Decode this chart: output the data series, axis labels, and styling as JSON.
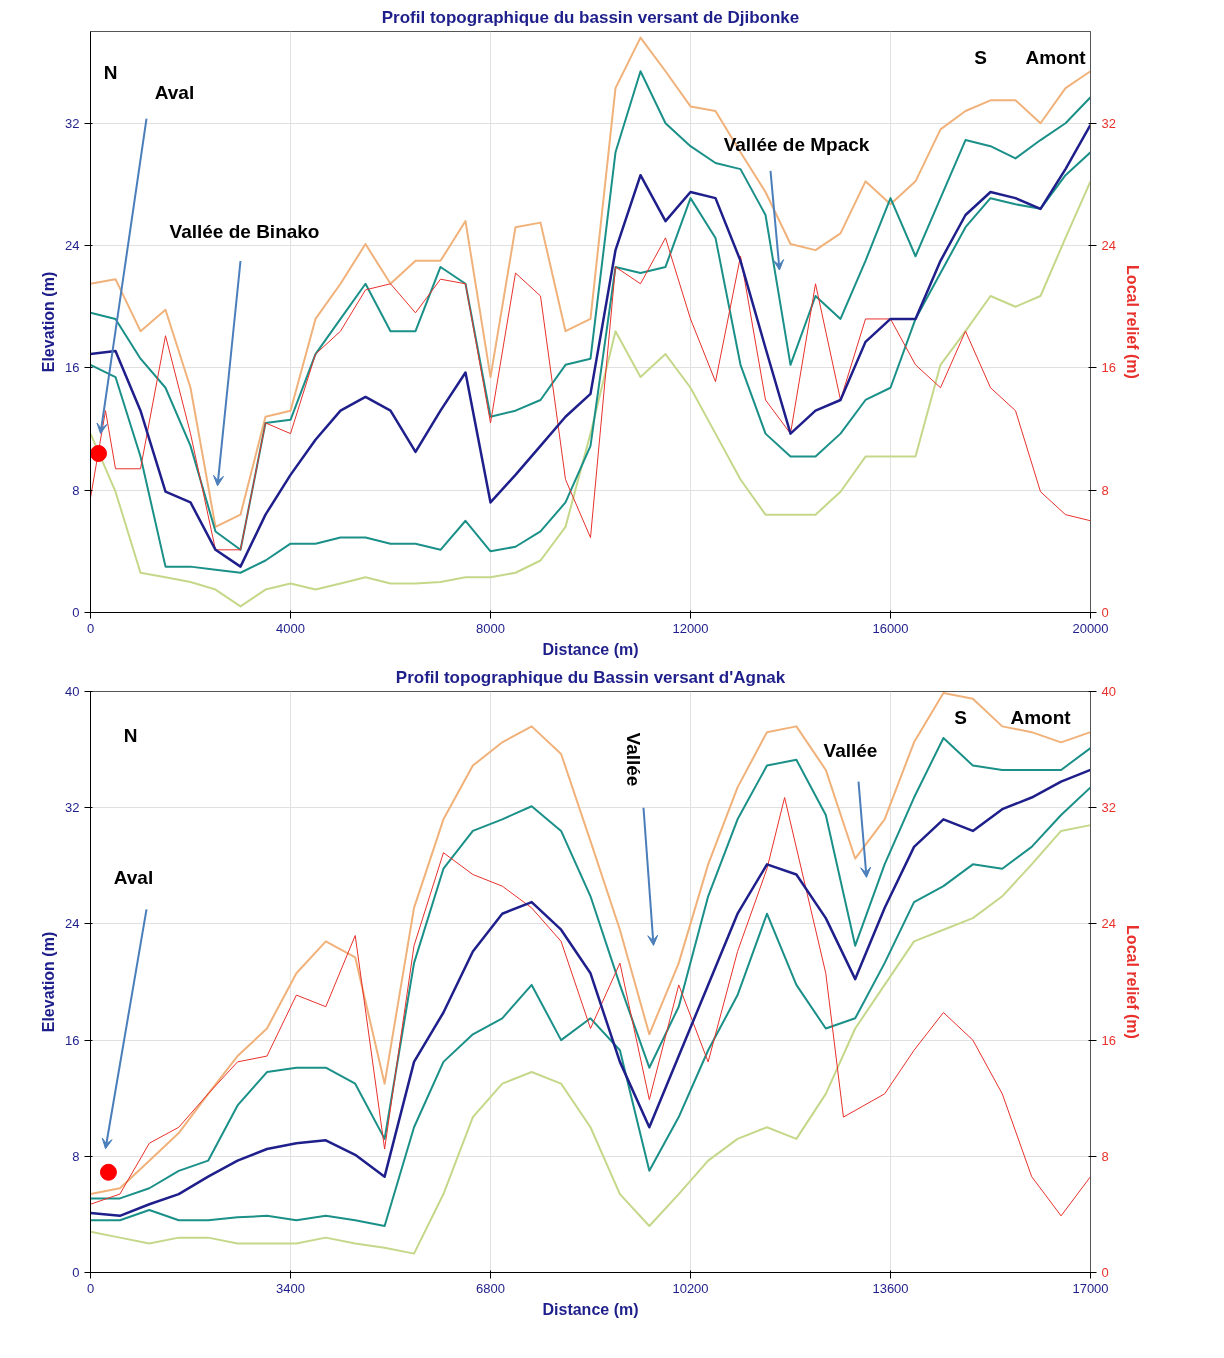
{
  "chart_data": [
    {
      "type": "line",
      "title": "Profil topographique du bassin versant de Djibonke",
      "xlabel": "Distance (m)",
      "ylabel": "Elevation (m)",
      "y2label": "Local relief (m)",
      "x": [
        0,
        500,
        1000,
        1500,
        2000,
        2500,
        3000,
        3500,
        4000,
        4500,
        5000,
        5500,
        6000,
        6500,
        7000,
        7500,
        8000,
        8500,
        9000,
        9500,
        10000,
        10500,
        11000,
        11500,
        12000,
        12500,
        13000,
        13500,
        14000,
        14500,
        15000,
        15500,
        16000,
        16500,
        17000,
        17500,
        18000,
        18500,
        19000,
        19500,
        20000
      ],
      "xlim": [
        0,
        20000
      ],
      "xticks": [
        0,
        4000,
        8000,
        12000,
        16000,
        20000
      ],
      "ylim": [
        0,
        38
      ],
      "yticks": [
        0,
        8,
        16,
        24,
        32
      ],
      "y2lim": [
        0,
        38
      ],
      "y2ticks": [
        0,
        8,
        16,
        24,
        32
      ],
      "grid": true,
      "series": [
        {
          "color": "#c5d88a",
          "values": [
            11.7,
            7.9,
            2.6,
            2.3,
            2,
            1.5,
            0.4,
            1.5,
            1.9,
            1.5,
            1.9,
            2.3,
            1.9,
            1.9,
            2,
            2.3,
            2.3,
            2.6,
            3.4,
            5.6,
            11.7,
            18.4,
            15.4,
            16.9,
            14.7,
            11.7,
            8.7,
            6.4,
            6.4,
            6.4,
            7.9,
            10.2,
            10.2,
            10.2,
            16.2,
            18.4,
            20.7,
            20,
            20.7,
            24.5,
            28.2
          ]
        },
        {
          "color": "#f0b27a",
          "values": [
            21.5,
            21.8,
            18.4,
            19.8,
            14.7,
            5.6,
            6.4,
            12.8,
            13.2,
            19.2,
            21.5,
            24.1,
            21.5,
            23,
            23,
            25.6,
            15.4,
            25.2,
            25.5,
            18.4,
            19.2,
            34.3,
            37.6,
            35.4,
            33.1,
            32.8,
            30.1,
            27.5,
            24.1,
            23.7,
            24.8,
            28.2,
            26.7,
            28.2,
            31.6,
            32.8,
            33.5,
            33.5,
            32,
            34.3,
            35.4
          ]
        },
        {
          "color": "#1a9088",
          "values": [
            19.6,
            19.2,
            16.6,
            14.7,
            10.9,
            5.3,
            4.1,
            12.4,
            12.6,
            16.9,
            19.2,
            21.5,
            18.4,
            18.4,
            22.6,
            21.5,
            12.8,
            13.2,
            13.9,
            16.2,
            16.6,
            30.1,
            35.4,
            32,
            30.5,
            29.4,
            29,
            26,
            16.2,
            20.7,
            19.2,
            23,
            27.1,
            23.3,
            27.1,
            30.9,
            30.5,
            29.7,
            30.9,
            32,
            33.7
          ]
        },
        {
          "color": "#1a9088",
          "values": [
            16.2,
            15.4,
            10.2,
            3,
            3,
            2.8,
            2.6,
            3.4,
            4.5,
            4.5,
            4.9,
            4.9,
            4.5,
            4.5,
            4.1,
            6,
            4,
            4.3,
            5.3,
            7.2,
            10.9,
            22.6,
            22.2,
            22.6,
            27.1,
            24.5,
            16.2,
            11.7,
            10.2,
            10.2,
            11.7,
            13.9,
            14.7,
            19.2,
            22.2,
            25.2,
            27.1,
            26.7,
            26.4,
            28.6,
            30.1
          ]
        },
        {
          "color": "#e8312c",
          "axis": "y2",
          "x": [
            0,
            300,
            500,
            1000,
            1500,
            2000,
            2500,
            3000,
            3500,
            4000,
            4500,
            5000,
            5500,
            6000,
            6500,
            7000,
            7500,
            8000,
            8500,
            9000,
            9500,
            10000,
            10500,
            11000,
            11500,
            12000,
            12500,
            13000,
            13500,
            14000,
            14500,
            15000,
            15500,
            16000,
            16500,
            17000,
            17500,
            18000,
            18500,
            19000,
            19500,
            20000
          ],
          "values": [
            7.5,
            13.2,
            9.4,
            9.4,
            18.1,
            11.7,
            4.1,
            4.1,
            12.4,
            11.7,
            16.9,
            18.4,
            21.1,
            21.5,
            19.6,
            21.8,
            21.5,
            12.4,
            22.2,
            20.7,
            8.7,
            4.9,
            22.6,
            21.5,
            24.5,
            19.2,
            15.1,
            23.3,
            13.9,
            11.7,
            21.5,
            13.9,
            19.2,
            19.2,
            16.2,
            14.7,
            18.4,
            14.7,
            13.2,
            7.9,
            6.4,
            6
          ]
        },
        {
          "color": "#1f1f8c",
          "values": [
            16.9,
            17.1,
            13.2,
            7.9,
            7.2,
            4.1,
            3,
            6.4,
            9,
            11.3,
            13.2,
            14.1,
            13.2,
            10.5,
            13.2,
            15.7,
            7.2,
            9,
            10.9,
            12.8,
            14.3,
            23.7,
            28.6,
            25.6,
            27.5,
            27.1,
            23,
            17.3,
            11.7,
            13.2,
            13.9,
            17.7,
            19.2,
            19.2,
            23,
            26,
            27.5,
            27.1,
            26.4,
            29,
            31.9
          ]
        },
        {
          "type": "scatter",
          "marker": "circle",
          "color": "#ff0000",
          "x": [
            160
          ],
          "values": [
            10.4
          ]
        }
      ],
      "annotations": [
        "N",
        "S",
        "Amont",
        {
          "text": "Aval",
          "x": 200,
          "y": 11.7
        },
        "Vallée de Binako",
        {
          "text": "Vallée de Mpack",
          "x": 13780,
          "y": 22.4
        }
      ]
    },
    {
      "type": "line",
      "title": "Profil topographique du Bassin versant d'Agnak",
      "xlabel": "Distance (m)",
      "ylabel": "Elevation (m)",
      "y2label": "Local relief (m)",
      "x": [
        0,
        500,
        1000,
        1500,
        2000,
        2500,
        3000,
        3500,
        4000,
        4500,
        5000,
        5500,
        6000,
        6500,
        7000,
        7500,
        8000,
        8500,
        9000,
        9500,
        10000,
        10500,
        11000,
        11500,
        12000,
        12500,
        13000,
        13500,
        14000,
        14500,
        15000,
        15500,
        16000,
        16500,
        17000
      ],
      "xlim": [
        0,
        17000
      ],
      "xticks": [
        0,
        3400,
        6800,
        10200,
        13600,
        17000
      ],
      "ylim": [
        0,
        40
      ],
      "yticks": [
        0,
        8,
        16,
        24,
        32,
        40
      ],
      "y2lim": [
        0,
        40
      ],
      "y2ticks": [
        0,
        8,
        16,
        24,
        32,
        40
      ],
      "grid": true,
      "series": [
        {
          "color": "#c5d88a",
          "values": [
            2.8,
            2.4,
            2,
            2.4,
            2.4,
            2,
            2,
            2,
            2.4,
            2,
            1.7,
            1.3,
            5.4,
            10.7,
            13,
            13.8,
            13,
            10,
            5.4,
            3.2,
            5.4,
            7.7,
            9.2,
            10,
            9.2,
            12.3,
            16.8,
            19.8,
            22.8,
            23.6,
            24.4,
            25.9,
            28.1,
            30.4,
            30.8
          ]
        },
        {
          "color": "#f0b27a",
          "values": [
            5.4,
            5.8,
            7.7,
            9.6,
            12.3,
            14.9,
            16.8,
            20.6,
            22.8,
            21.7,
            13,
            25.1,
            31.2,
            34.9,
            36.5,
            37.6,
            35.7,
            29.7,
            23.6,
            16.4,
            21.3,
            28.1,
            33.4,
            37.2,
            37.6,
            34.6,
            28.5,
            31.2,
            36.5,
            39.9,
            39.5,
            37.6,
            37.2,
            36.5,
            37.2
          ]
        },
        {
          "color": "#1a9088",
          "values": [
            5.1,
            5.1,
            5.8,
            7,
            7.7,
            11.5,
            13.8,
            14.1,
            14.1,
            13,
            9.2,
            21.3,
            27.8,
            30.4,
            31.2,
            32.1,
            30.4,
            25.9,
            19.8,
            14.1,
            18.3,
            25.9,
            31.2,
            34.9,
            35.3,
            31.5,
            22.5,
            28.1,
            32.7,
            36.8,
            34.9,
            34.6,
            34.6,
            34.6,
            36.1
          ]
        },
        {
          "color": "#1a9088",
          "values": [
            3.6,
            3.6,
            4.3,
            3.6,
            3.6,
            3.8,
            3.9,
            3.6,
            3.9,
            3.6,
            3.2,
            10,
            14.5,
            16.4,
            17.5,
            19.8,
            16,
            17.5,
            15.3,
            7,
            10.7,
            15.3,
            19.1,
            24.7,
            19.8,
            16.8,
            17.5,
            21.3,
            25.5,
            26.6,
            28.1,
            27.8,
            29.3,
            31.5,
            33.4
          ]
        },
        {
          "color": "#e8312c",
          "axis": "y2",
          "x": [
            0,
            500,
            1000,
            1500,
            2000,
            2500,
            3000,
            3500,
            4000,
            4500,
            5000,
            5500,
            6000,
            6500,
            7000,
            7500,
            8000,
            8500,
            9000,
            9500,
            10000,
            10500,
            11000,
            11500,
            11800,
            12500,
            12800,
            13500,
            14000,
            14500,
            15000,
            15500,
            16000,
            16500,
            17000
          ],
          "values": [
            4.7,
            5.4,
            8.9,
            10,
            12.3,
            14.5,
            14.9,
            19.1,
            18.3,
            23.2,
            8.5,
            22.5,
            28.9,
            27.4,
            26.6,
            25.1,
            22.8,
            16.8,
            21.3,
            11.9,
            19.8,
            14.5,
            22.1,
            27.8,
            32.7,
            20.6,
            10.7,
            12.3,
            15.3,
            17.9,
            16,
            12.3,
            6.6,
            3.9,
            6.6
          ]
        },
        {
          "color": "#1f1f8c",
          "values": [
            4.1,
            3.9,
            4.7,
            5.4,
            6.6,
            7.7,
            8.5,
            8.9,
            9.1,
            8.1,
            6.6,
            14.5,
            17.9,
            22.1,
            24.7,
            25.5,
            23.6,
            20.6,
            14.5,
            10,
            14.9,
            19.8,
            24.7,
            28.1,
            27.4,
            24.4,
            20.2,
            25.1,
            29.3,
            31.2,
            30.4,
            31.9,
            32.7,
            33.8,
            34.6
          ]
        },
        {
          "type": "scatter",
          "marker": "circle",
          "color": "#ff0000",
          "x": [
            305
          ],
          "values": [
            6.9
          ]
        }
      ],
      "annotations": [
        "N",
        "S",
        "Amont",
        "Aval",
        "Vallée",
        "Vallée"
      ]
    }
  ]
}
